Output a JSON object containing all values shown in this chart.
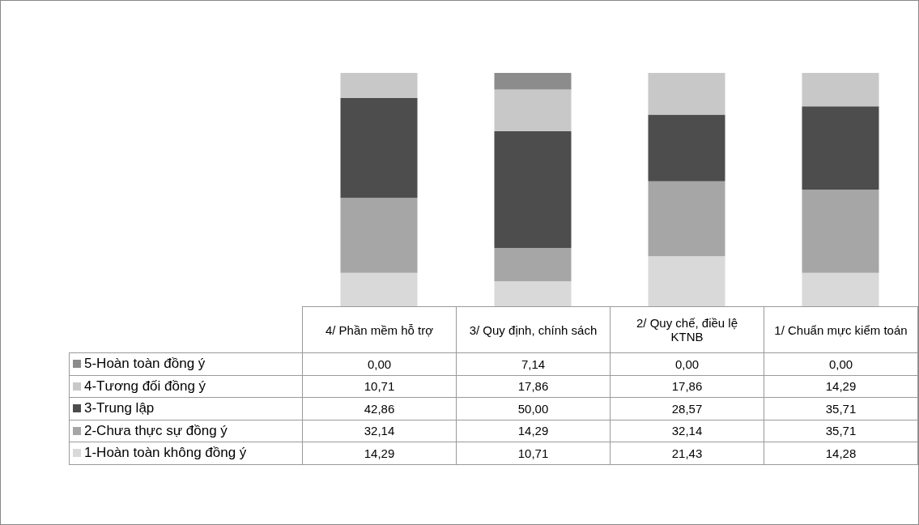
{
  "chart_data": {
    "type": "bar",
    "stacked": true,
    "legend": "bottom",
    "categories": [
      "4/ Phần mềm hỗ trợ",
      "3/ Quy định, chính sách",
      "2/ Quy chế, điều lệ KTNB",
      "1/ Chuẩn mực kiểm toán"
    ],
    "series": [
      {
        "name": "1-Hoàn toàn không đồng ý",
        "color": "#d9d9d9",
        "values": [
          14.29,
          10.71,
          21.43,
          14.28
        ],
        "value_labels": [
          "14,29",
          "10,71",
          "21,43",
          "14,28"
        ]
      },
      {
        "name": "2-Chưa thực sự đồng ý",
        "color": "#a6a6a6",
        "values": [
          32.14,
          14.29,
          32.14,
          35.71
        ],
        "value_labels": [
          "32,14",
          "14,29",
          "32,14",
          "35,71"
        ]
      },
      {
        "name": "3-Trung lập",
        "color": "#4d4d4d",
        "values": [
          42.86,
          50.0,
          28.57,
          35.71
        ],
        "value_labels": [
          "42,86",
          "50,00",
          "28,57",
          "35,71"
        ]
      },
      {
        "name": "4-Tương đối đồng ý",
        "color": "#c8c8c8",
        "values": [
          10.71,
          17.86,
          17.86,
          14.29
        ],
        "value_labels": [
          "10,71",
          "17,86",
          "17,86",
          "14,29"
        ]
      },
      {
        "name": "5-Hoàn toàn đồng ý",
        "color": "#8c8c8c",
        "values": [
          0.0,
          7.14,
          0.0,
          0.0
        ],
        "value_labels": [
          "0,00",
          "7,14",
          "0,00",
          "0,00"
        ]
      }
    ]
  }
}
